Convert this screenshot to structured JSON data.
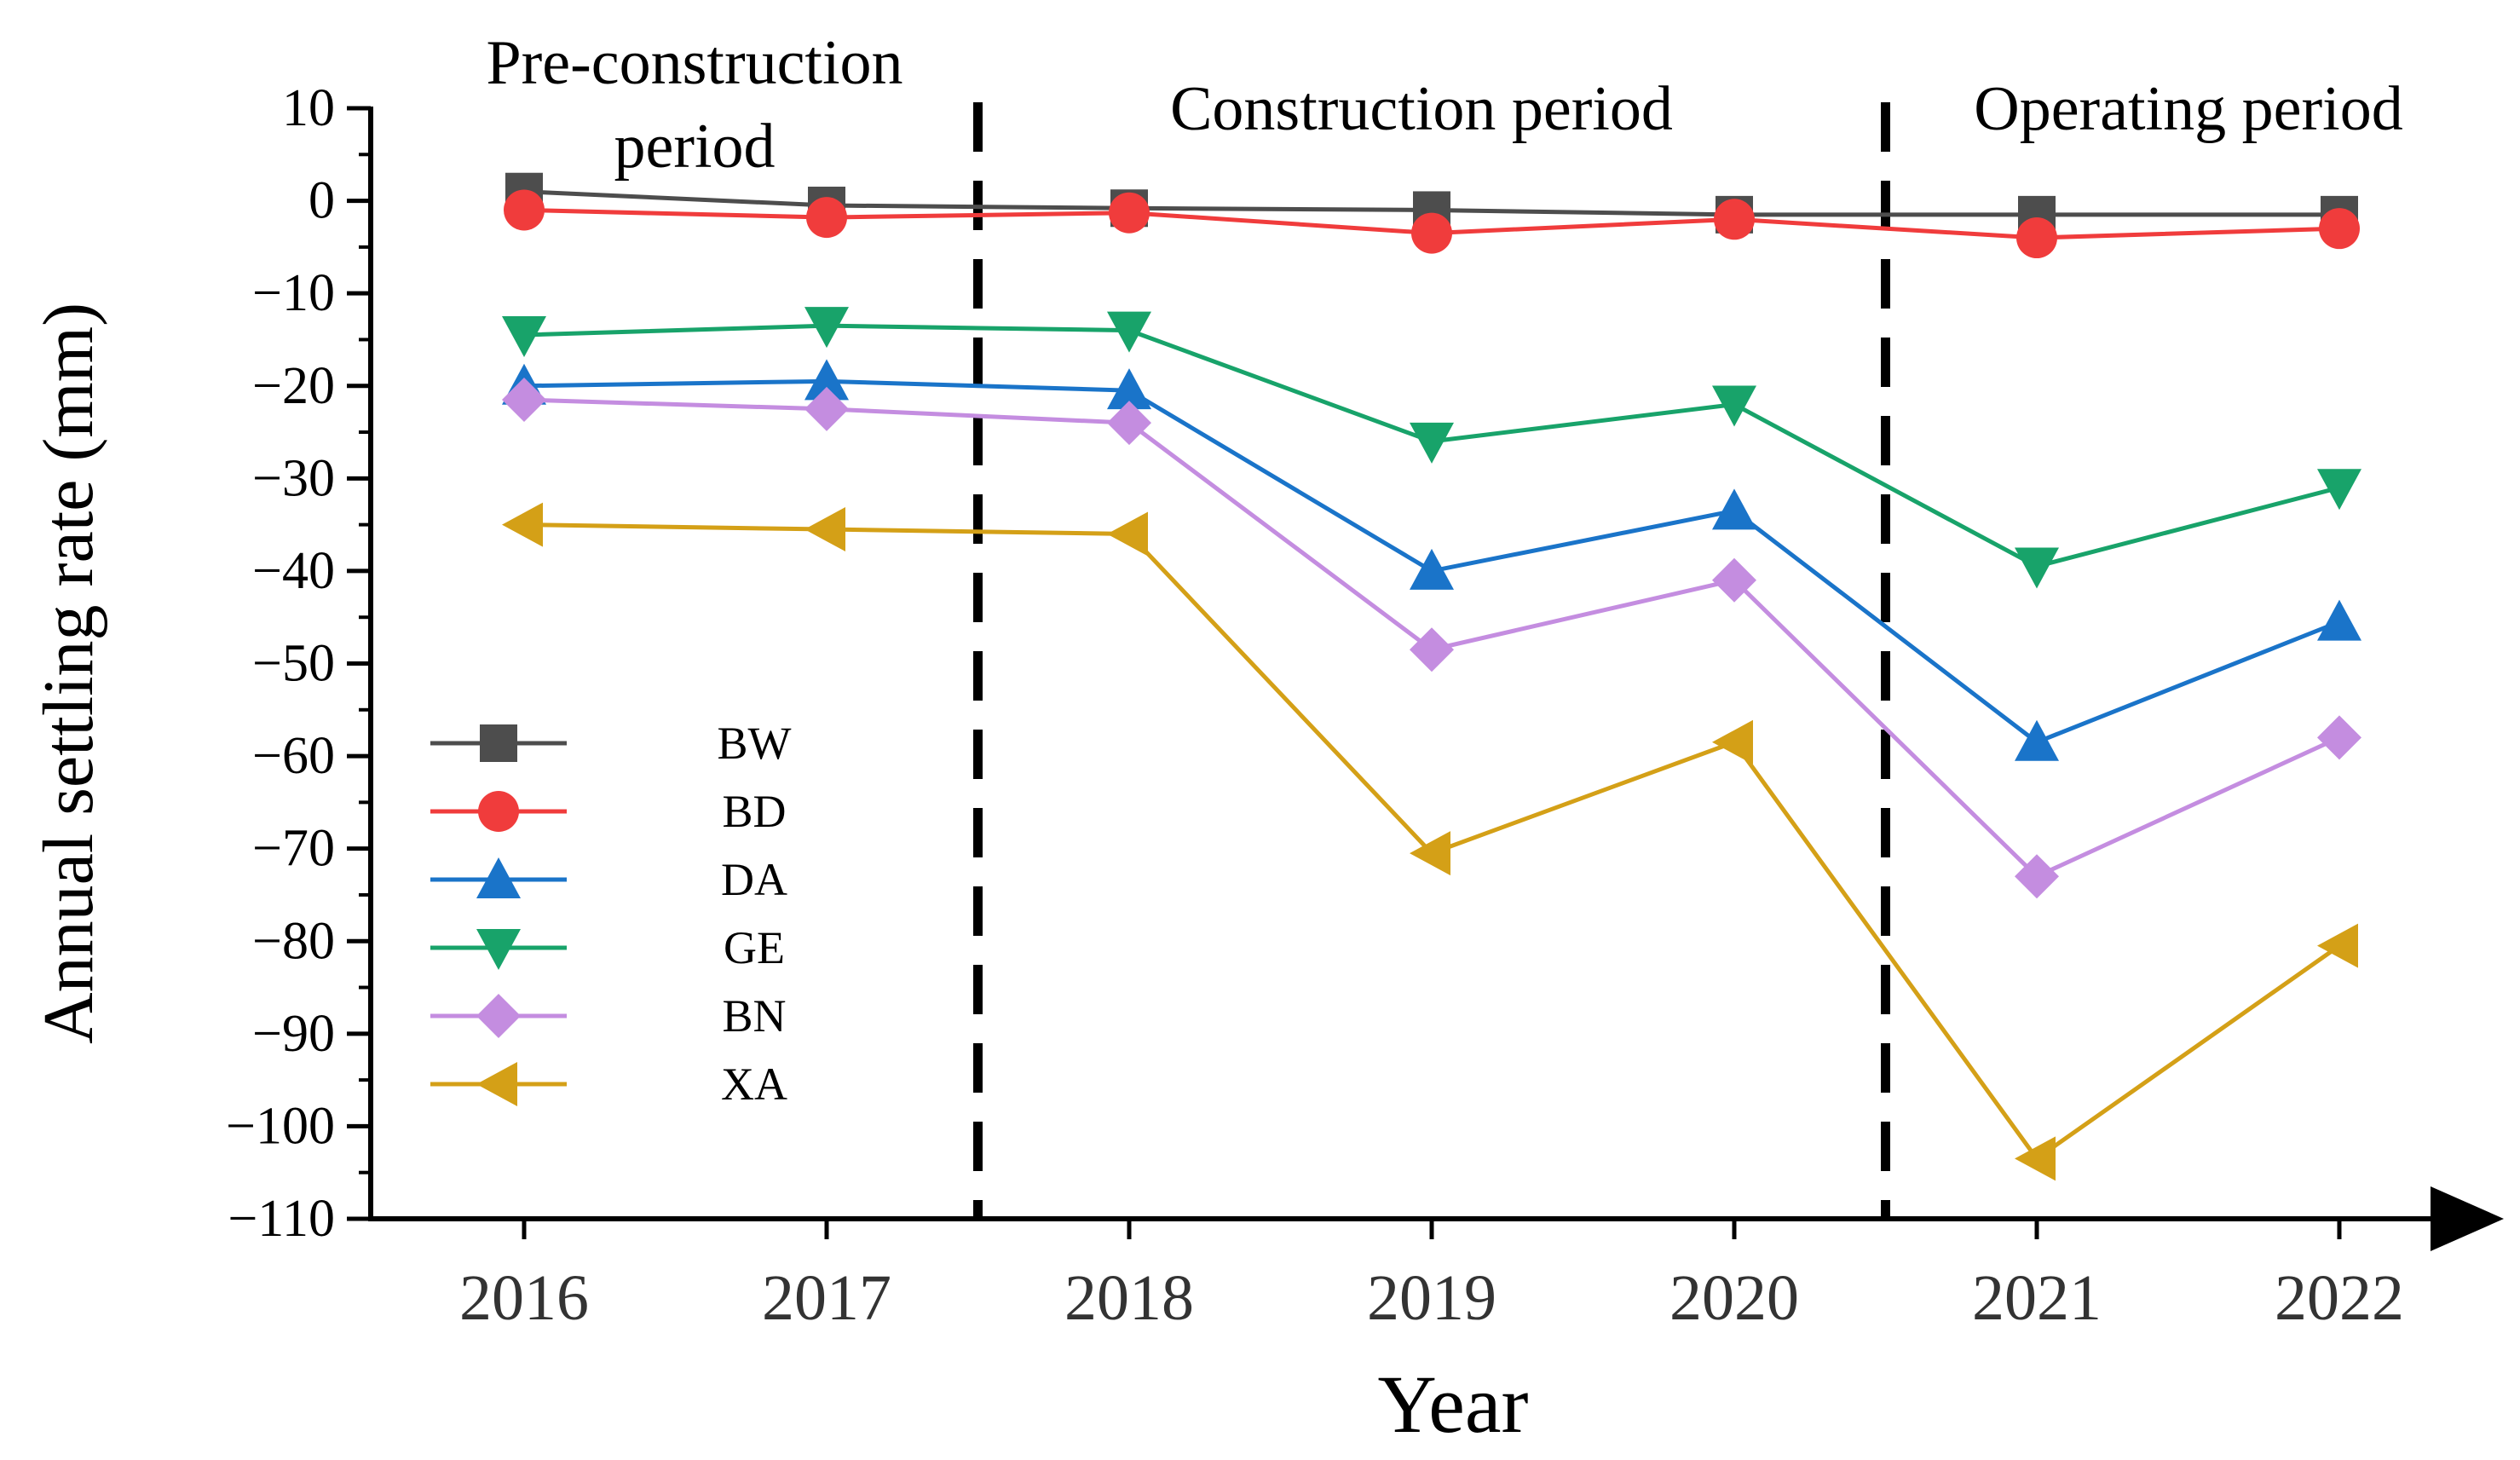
{
  "chart_data": {
    "type": "line",
    "xlabel": "Year",
    "ylabel": "Annual settling rate (mm)",
    "categories": [
      "2016",
      "2017",
      "2018",
      "2019",
      "2020",
      "2021",
      "2022"
    ],
    "ylim": [
      -110,
      10
    ],
    "yticks": [
      10,
      0,
      -10,
      -20,
      -30,
      -40,
      -50,
      -60,
      -70,
      -80,
      -90,
      -100,
      -110
    ],
    "ytick_labels": [
      "10",
      "0",
      "−10",
      "−20",
      "−30",
      "−40",
      "−50",
      "−60",
      "−70",
      "−80",
      "−90",
      "−100",
      "−110"
    ],
    "legend_placement": "left",
    "periods": [
      {
        "label_lines": [
          "Pre-construction",
          "period"
        ]
      },
      {
        "label_lines": [
          "Construction period"
        ]
      },
      {
        "label_lines": [
          "Operating period"
        ]
      }
    ],
    "period_dividers_after_index": [
      1.5,
      4.5
    ],
    "series": [
      {
        "name": "BW",
        "color": "#4d4d4d",
        "marker": "square",
        "values": [
          1,
          -0.5,
          -0.8,
          -1,
          -1.5,
          -1.5,
          -1.5
        ]
      },
      {
        "name": "BD",
        "color": "#f03c3c",
        "marker": "circle",
        "values": [
          -1,
          -1.8,
          -1.3,
          -3.5,
          -2,
          -4,
          -3
        ]
      },
      {
        "name": "DA",
        "color": "#1a74c9",
        "marker": "triangle-up",
        "values": [
          -20,
          -19.5,
          -20.5,
          -40,
          -33.5,
          -58.5,
          -45.5
        ]
      },
      {
        "name": "GE",
        "color": "#18a36a",
        "marker": "triangle-down",
        "values": [
          -14.5,
          -13.5,
          -14,
          -26,
          -22,
          -39.5,
          -31
        ]
      },
      {
        "name": "BN",
        "color": "#c48de0",
        "marker": "diamond",
        "values": [
          -21.5,
          -22.5,
          -24,
          -48.5,
          -41,
          -73,
          -58
        ]
      },
      {
        "name": "XA",
        "color": "#d4a017",
        "marker": "triangle-left",
        "values": [
          -35,
          -35.5,
          -36,
          -70.5,
          -58.5,
          -103.5,
          -80.5
        ]
      }
    ]
  }
}
